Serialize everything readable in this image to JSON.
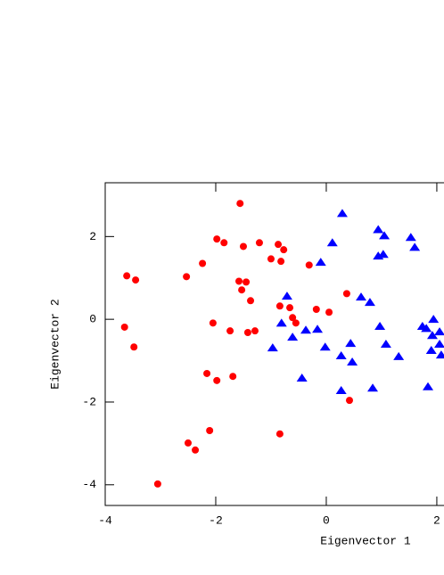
{
  "chart_data": {
    "type": "scatter",
    "xlabel": "Eigenvector 1",
    "ylabel": "Eigenvector 2",
    "xlim": [
      -4,
      2.13
    ],
    "ylim": [
      -4.5,
      3.3
    ],
    "xticks": [
      -4,
      -2,
      0,
      2
    ],
    "yticks": [
      -4,
      -2,
      0,
      2
    ],
    "series": [
      {
        "marker": "circle",
        "color": "#ff0000",
        "x": [
          -1.56,
          -1.98,
          -1.85,
          -1.5,
          -1.21,
          -0.87,
          -0.77,
          -1.0,
          -0.82,
          -0.31,
          -2.24,
          -2.53,
          -3.61,
          -3.45,
          -1.58,
          -1.45,
          -1.53,
          -1.37,
          -0.84,
          -0.66,
          -0.18,
          0.05,
          0.37,
          -0.61,
          -0.55,
          -2.05,
          -3.65,
          -1.74,
          -1.29,
          -1.42,
          -3.48,
          -2.16,
          -1.69,
          -1.98,
          0.42,
          -2.11,
          -0.84,
          -2.5,
          -2.37,
          -3.05
        ],
        "values": [
          2.8,
          1.94,
          1.85,
          1.76,
          1.85,
          1.81,
          1.68,
          1.46,
          1.4,
          1.31,
          1.35,
          1.03,
          1.05,
          0.95,
          0.92,
          0.9,
          0.71,
          0.45,
          0.32,
          0.28,
          0.24,
          0.17,
          0.62,
          0.04,
          -0.09,
          -0.09,
          -0.19,
          -0.28,
          -0.28,
          -0.32,
          -0.67,
          -1.31,
          -1.38,
          -1.48,
          -1.96,
          -2.69,
          -2.77,
          -2.99,
          -3.16,
          -3.98
        ]
      },
      {
        "marker": "triangle",
        "color": "#0000ff",
        "x": [
          0.29,
          0.94,
          1.05,
          1.53,
          1.6,
          0.11,
          -0.1,
          0.94,
          1.03,
          -0.71,
          0.63,
          0.79,
          -0.81,
          -0.97,
          -0.37,
          -0.16,
          -0.61,
          0.97,
          -0.02,
          0.44,
          1.08,
          1.31,
          0.27,
          0.47,
          -0.44,
          0.27,
          0.84,
          1.84,
          1.94,
          1.74,
          1.81,
          1.92,
          2.05,
          1.9,
          2.05,
          2.08
        ],
        "values": [
          2.56,
          2.17,
          2.02,
          1.98,
          1.74,
          1.85,
          1.38,
          1.53,
          1.57,
          0.56,
          0.54,
          0.41,
          -0.09,
          -0.69,
          -0.26,
          -0.24,
          -0.43,
          -0.17,
          -0.67,
          -0.58,
          -0.6,
          -0.9,
          -0.88,
          -1.03,
          -1.42,
          -1.72,
          -1.66,
          -1.63,
          0.0,
          -0.17,
          -0.22,
          -0.39,
          -0.3,
          -0.75,
          -0.6,
          -0.86
        ]
      }
    ]
  }
}
